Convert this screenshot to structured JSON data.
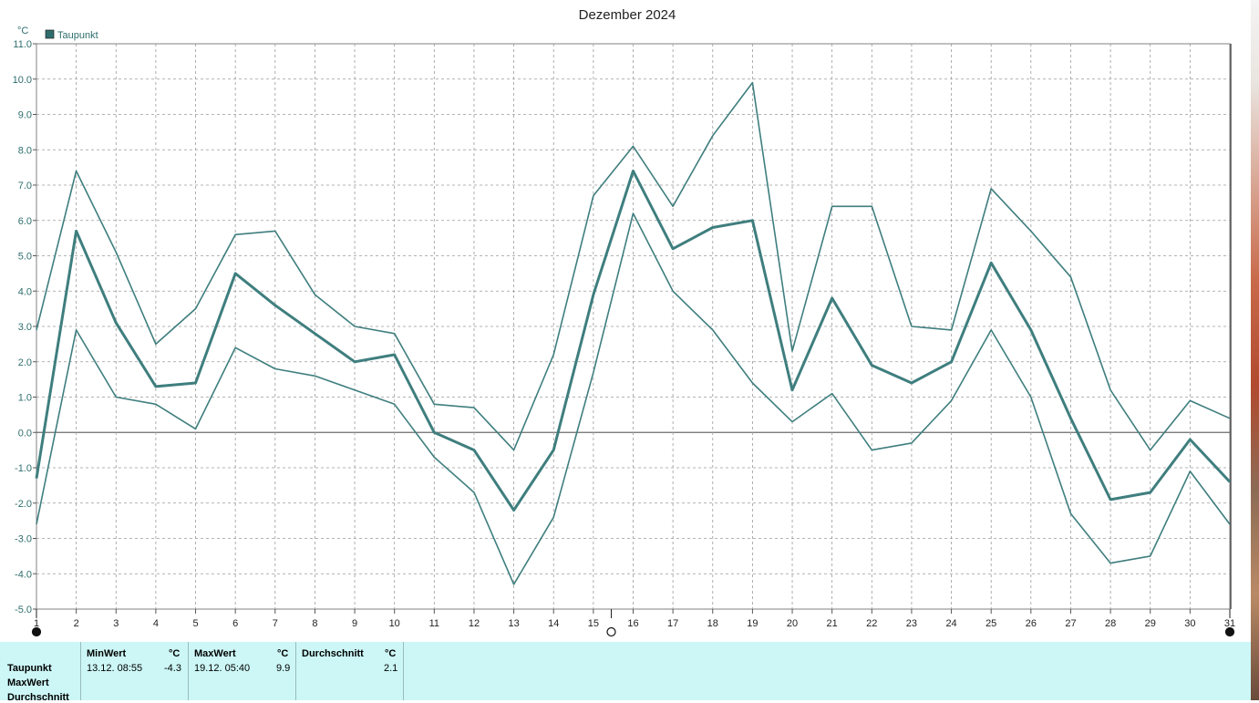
{
  "chart_data": {
    "type": "line",
    "title": "Dezember 2024",
    "ylabel": "°C",
    "legend": {
      "label": "Taupunkt",
      "color": "#2f6d6d",
      "placement": "top-left"
    },
    "ylim": [
      -5,
      11
    ],
    "xlim": [
      1,
      31
    ],
    "yticks": [
      "11.0",
      "10.0",
      "9.0",
      "8.0",
      "7.0",
      "6.0",
      "5.0",
      "4.0",
      "3.0",
      "2.0",
      "1.0",
      "0.0",
      "-1.0",
      "-2.0",
      "-3.0",
      "-4.0",
      "-5.0"
    ],
    "x": [
      1,
      2,
      3,
      4,
      5,
      6,
      7,
      8,
      9,
      10,
      11,
      12,
      13,
      14,
      15,
      16,
      17,
      18,
      19,
      20,
      21,
      22,
      23,
      24,
      25,
      26,
      27,
      28,
      29,
      30,
      31
    ],
    "grid": true,
    "line_color": "#3f7e7e",
    "series": [
      {
        "role": "max",
        "values": [
          2.9,
          7.4,
          5.1,
          2.5,
          3.5,
          5.6,
          5.7,
          3.9,
          3.0,
          2.8,
          0.8,
          0.7,
          -0.5,
          2.2,
          6.7,
          8.1,
          6.4,
          8.4,
          9.9,
          2.3,
          6.4,
          6.4,
          3.0,
          2.9,
          6.9,
          5.7,
          4.4,
          1.2,
          -0.5,
          0.9,
          0.4
        ]
      },
      {
        "role": "avg",
        "values": [
          -1.3,
          5.7,
          3.1,
          1.3,
          1.4,
          4.5,
          3.6,
          2.8,
          2.0,
          2.2,
          0.0,
          -0.5,
          -2.2,
          -0.5,
          3.9,
          7.4,
          5.2,
          5.8,
          6.0,
          1.2,
          3.8,
          1.9,
          1.4,
          2.0,
          4.8,
          2.9,
          0.4,
          -1.9,
          -1.7,
          -0.2,
          -1.4
        ]
      },
      {
        "role": "min",
        "values": [
          -2.6,
          2.9,
          1.0,
          0.8,
          0.1,
          2.4,
          1.8,
          1.6,
          1.2,
          0.8,
          -0.7,
          -1.7,
          -4.3,
          -2.4,
          1.7,
          6.2,
          4.0,
          2.9,
          1.4,
          0.3,
          1.1,
          -0.5,
          -0.3,
          0.9,
          2.9,
          1.0,
          -2.3,
          -3.7,
          -3.5,
          -1.1,
          -2.6
        ]
      }
    ],
    "markers": [
      {
        "x": 1,
        "type": "filled"
      },
      {
        "x": 15.45,
        "type": "open"
      },
      {
        "x": 31,
        "type": "filled"
      }
    ]
  },
  "stats": {
    "row_labels": [
      "Taupunkt",
      "MaxWert",
      "Durchschnitt"
    ],
    "min": {
      "header": "MinWert",
      "unit": "°C",
      "date": "13.12.  08:55",
      "value": "-4.3"
    },
    "max": {
      "header": "MaxWert",
      "unit": "°C",
      "date": "19.12.  05:40",
      "value": "9.9"
    },
    "avg": {
      "header": "Durchschnitt",
      "unit": "°C",
      "value": "2.1"
    }
  }
}
